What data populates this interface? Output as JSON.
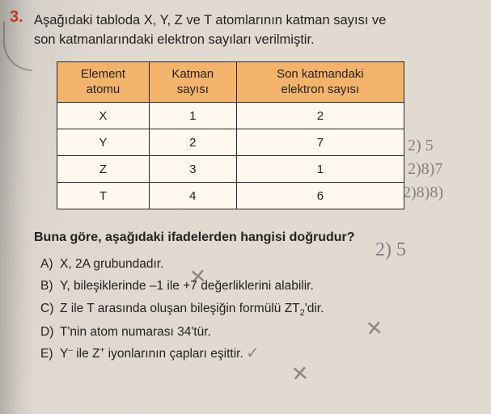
{
  "question": {
    "number": "3.",
    "text_line1": "Aşağıdaki tabloda X, Y, Z ve T atomlarının katman sayısı ve",
    "text_line2": "son katmanlarındaki elektron sayıları verilmiştir."
  },
  "table": {
    "type": "table",
    "header_bg": "#f3b36a",
    "cell_bg": "#fff8ee",
    "border_color": "#2a2a2a",
    "columns": [
      {
        "line1": "Element",
        "line2": "atomu"
      },
      {
        "line1": "Katman",
        "line2": "sayısı"
      },
      {
        "line1": "Son katmandaki",
        "line2": "elektron sayısı"
      }
    ],
    "rows": [
      {
        "c0": "X",
        "c1": "1",
        "c2": "2"
      },
      {
        "c0": "Y",
        "c1": "2",
        "c2": "7"
      },
      {
        "c0": "Z",
        "c1": "3",
        "c2": "1"
      },
      {
        "c0": "T",
        "c1": "4",
        "c2": "6"
      }
    ]
  },
  "prompt": "Buna göre, aşağıdaki ifadelerden hangisi doğrudur?",
  "choices": {
    "A": {
      "letter": "A)",
      "text": "X, 2A grubundadır."
    },
    "B": {
      "letter": "B)",
      "text": "Y, bileşiklerinde –1 ile +7 değerliklerini alabilir."
    },
    "C": {
      "letter": "C)",
      "text_pre": "Z ile T arasında oluşan bileşiğin formülü ZT",
      "sub": "2",
      "text_post": "'dir."
    },
    "D": {
      "letter": "D)",
      "text": "T'nin atom numarası 34'tür."
    },
    "E": {
      "letter": "E)",
      "text_pre": "Y",
      "sup1": "–",
      "mid": " ile Z",
      "sup2": "+",
      "text_post": " iyonlarının çapları eşittir."
    }
  },
  "handwriting": {
    "h1": "2) 5",
    "h2": "2)8)7",
    "h3": "2)8)8)",
    "h4": "2) 5"
  },
  "colors": {
    "qnum": "#c0392b",
    "text": "#222222",
    "background": "#e0dad1"
  }
}
